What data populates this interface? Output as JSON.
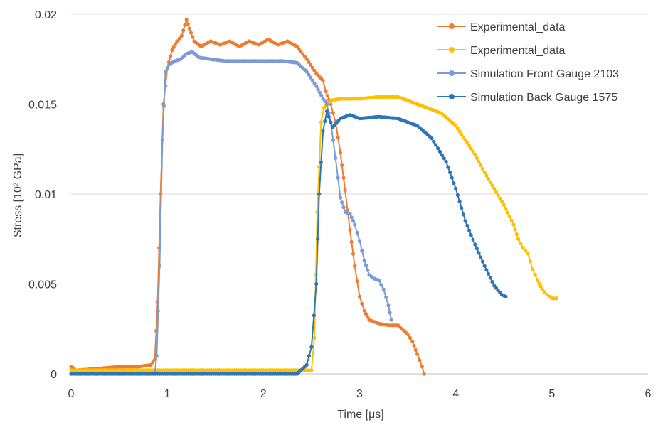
{
  "chart_data": {
    "type": "line",
    "title": "",
    "xlabel": "Time [μs]",
    "ylabel": "Stress [10² GPa]",
    "xlim": [
      0,
      6
    ],
    "ylim": [
      0,
      0.02
    ],
    "x_ticks": [
      0,
      1,
      2,
      3,
      4,
      5,
      6
    ],
    "x_tick_labels": [
      "0",
      "1",
      "2",
      "3",
      "4",
      "5",
      "6"
    ],
    "y_ticks": [
      0,
      0.005,
      0.01,
      0.015,
      0.02
    ],
    "y_tick_labels": [
      "0",
      "0.005",
      "0.01",
      "0.015",
      "0.02"
    ],
    "grid": "horizontal",
    "legend_position": "top-right",
    "series": [
      {
        "name": "Experimental_data",
        "color": "#ED7D31",
        "marker": "circle",
        "points": [
          [
            0.0,
            0.0004
          ],
          [
            0.05,
            0.0002
          ],
          [
            0.3,
            0.0003
          ],
          [
            0.5,
            0.0004
          ],
          [
            0.7,
            0.0004
          ],
          [
            0.83,
            0.0005
          ],
          [
            0.87,
            0.0008
          ],
          [
            0.9,
            0.004
          ],
          [
            0.93,
            0.01
          ],
          [
            0.96,
            0.015
          ],
          [
            1.0,
            0.017
          ],
          [
            1.05,
            0.018
          ],
          [
            1.1,
            0.0185
          ],
          [
            1.15,
            0.0188
          ],
          [
            1.2,
            0.0197
          ],
          [
            1.23,
            0.0192
          ],
          [
            1.28,
            0.0185
          ],
          [
            1.35,
            0.0182
          ],
          [
            1.45,
            0.0185
          ],
          [
            1.55,
            0.0183
          ],
          [
            1.65,
            0.0185
          ],
          [
            1.75,
            0.0182
          ],
          [
            1.85,
            0.0185
          ],
          [
            1.95,
            0.0183
          ],
          [
            2.05,
            0.0186
          ],
          [
            2.15,
            0.0183
          ],
          [
            2.25,
            0.0185
          ],
          [
            2.35,
            0.0182
          ],
          [
            2.45,
            0.0175
          ],
          [
            2.55,
            0.0167
          ],
          [
            2.62,
            0.0163
          ],
          [
            2.65,
            0.0157
          ],
          [
            2.7,
            0.015
          ],
          [
            2.75,
            0.014
          ],
          [
            2.8,
            0.0123
          ],
          [
            2.85,
            0.0102
          ],
          [
            2.9,
            0.008
          ],
          [
            2.95,
            0.006
          ],
          [
            3.0,
            0.0043
          ],
          [
            3.05,
            0.0035
          ],
          [
            3.1,
            0.003
          ],
          [
            3.2,
            0.0028
          ],
          [
            3.3,
            0.0027
          ],
          [
            3.4,
            0.0027
          ],
          [
            3.5,
            0.0022
          ],
          [
            3.55,
            0.0018
          ],
          [
            3.6,
            0.0011
          ],
          [
            3.65,
            0.0004
          ],
          [
            3.67,
            0.0
          ]
        ]
      },
      {
        "name": "Experimental_data",
        "color": "#FFC000",
        "marker": "circle",
        "points": [
          [
            0.0,
            0.0002
          ],
          [
            1.0,
            0.0002
          ],
          [
            2.0,
            0.0002
          ],
          [
            2.45,
            0.0002
          ],
          [
            2.5,
            0.0002
          ],
          [
            2.53,
            0.002
          ],
          [
            2.56,
            0.009
          ],
          [
            2.6,
            0.014
          ],
          [
            2.63,
            0.0148
          ],
          [
            2.7,
            0.0152
          ],
          [
            2.8,
            0.0153
          ],
          [
            3.0,
            0.0153
          ],
          [
            3.2,
            0.0154
          ],
          [
            3.4,
            0.0154
          ],
          [
            3.55,
            0.0151
          ],
          [
            3.7,
            0.0148
          ],
          [
            3.85,
            0.0145
          ],
          [
            4.0,
            0.0138
          ],
          [
            4.1,
            0.013
          ],
          [
            4.2,
            0.0122
          ],
          [
            4.3,
            0.0112
          ],
          [
            4.4,
            0.0103
          ],
          [
            4.5,
            0.0094
          ],
          [
            4.6,
            0.0083
          ],
          [
            4.65,
            0.0075
          ],
          [
            4.7,
            0.007
          ],
          [
            4.75,
            0.0067
          ],
          [
            4.8,
            0.0058
          ],
          [
            4.85,
            0.0052
          ],
          [
            4.9,
            0.0047
          ],
          [
            4.95,
            0.0044
          ],
          [
            5.0,
            0.0042
          ],
          [
            5.05,
            0.0042
          ]
        ]
      },
      {
        "name": "Simulation Front Gauge 2103",
        "color": "#7B9BD6",
        "marker": "circle",
        "points": [
          [
            0.0,
            0.0
          ],
          [
            0.5,
            0.0
          ],
          [
            0.87,
            0.0
          ],
          [
            0.89,
            0.001
          ],
          [
            0.92,
            0.006
          ],
          [
            0.95,
            0.013
          ],
          [
            0.98,
            0.0168
          ],
          [
            1.02,
            0.0172
          ],
          [
            1.08,
            0.0174
          ],
          [
            1.14,
            0.0175
          ],
          [
            1.2,
            0.0178
          ],
          [
            1.26,
            0.0179
          ],
          [
            1.33,
            0.0176
          ],
          [
            1.45,
            0.0175
          ],
          [
            1.6,
            0.0174
          ],
          [
            1.8,
            0.0174
          ],
          [
            2.0,
            0.0174
          ],
          [
            2.2,
            0.0174
          ],
          [
            2.35,
            0.0173
          ],
          [
            2.45,
            0.0168
          ],
          [
            2.55,
            0.016
          ],
          [
            2.62,
            0.0153
          ],
          [
            2.66,
            0.015
          ],
          [
            2.7,
            0.014
          ],
          [
            2.75,
            0.012
          ],
          [
            2.8,
            0.0098
          ],
          [
            2.85,
            0.009
          ],
          [
            2.9,
            0.0089
          ],
          [
            2.95,
            0.0083
          ],
          [
            3.0,
            0.0074
          ],
          [
            3.05,
            0.0063
          ],
          [
            3.1,
            0.0055
          ],
          [
            3.15,
            0.0053
          ],
          [
            3.2,
            0.0052
          ],
          [
            3.25,
            0.0047
          ],
          [
            3.3,
            0.0038
          ],
          [
            3.33,
            0.003
          ]
        ]
      },
      {
        "name": "Simulation Back Gauge 1575",
        "color": "#2E75B6",
        "marker": "circle",
        "points": [
          [
            0.0,
            0.0
          ],
          [
            1.0,
            0.0
          ],
          [
            2.0,
            0.0
          ],
          [
            2.35,
            0.0
          ],
          [
            2.45,
            0.0005
          ],
          [
            2.5,
            0.0015
          ],
          [
            2.55,
            0.005
          ],
          [
            2.58,
            0.01
          ],
          [
            2.62,
            0.0135
          ],
          [
            2.66,
            0.0146
          ],
          [
            2.72,
            0.0137
          ],
          [
            2.8,
            0.0142
          ],
          [
            2.9,
            0.0144
          ],
          [
            3.0,
            0.0142
          ],
          [
            3.2,
            0.0143
          ],
          [
            3.4,
            0.0142
          ],
          [
            3.6,
            0.0138
          ],
          [
            3.75,
            0.0131
          ],
          [
            3.9,
            0.0118
          ],
          [
            4.0,
            0.0103
          ],
          [
            4.1,
            0.0085
          ],
          [
            4.2,
            0.0072
          ],
          [
            4.3,
            0.006
          ],
          [
            4.4,
            0.0049
          ],
          [
            4.48,
            0.0044
          ],
          [
            4.52,
            0.0043
          ]
        ]
      }
    ]
  }
}
